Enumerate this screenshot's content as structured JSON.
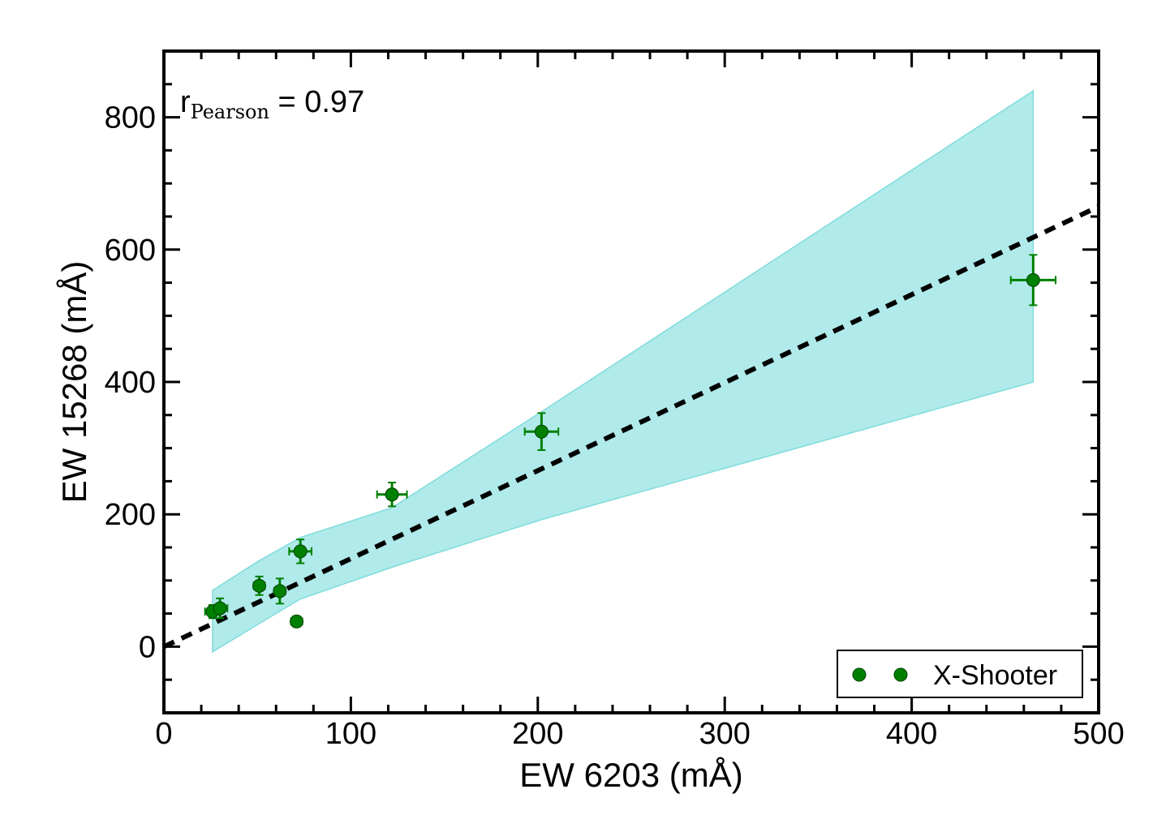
{
  "chart_data": {
    "type": "scatter",
    "title": "",
    "xlabel": "EW 6203 (mÅ)",
    "ylabel": "EW 15268 (mÅ)",
    "xlim": [
      0,
      500
    ],
    "ylim": [
      -100,
      900
    ],
    "x_ticks": [
      0,
      100,
      200,
      300,
      400,
      500
    ],
    "x_tick_labels": [
      "0",
      "100",
      "200",
      "300",
      "400",
      "500"
    ],
    "y_ticks": [
      0,
      200,
      400,
      600,
      800
    ],
    "y_tick_labels": [
      "0",
      "200",
      "400",
      "600",
      "800"
    ],
    "grid": false,
    "series": [
      {
        "name": "X-Shooter",
        "color": "#008000",
        "points": [
          {
            "x": 26,
            "y": 53,
            "xerr": 4,
            "yerr": 10
          },
          {
            "x": 30,
            "y": 58,
            "xerr": 4,
            "yerr": 15
          },
          {
            "x": 51,
            "y": 92,
            "xerr": 3,
            "yerr": 14
          },
          {
            "x": 62,
            "y": 84,
            "xerr": 3,
            "yerr": 19
          },
          {
            "x": 71,
            "y": 38,
            "xerr": 3,
            "yerr": 8
          },
          {
            "x": 73,
            "y": 144,
            "xerr": 6,
            "yerr": 18
          },
          {
            "x": 122,
            "y": 230,
            "xerr": 8,
            "yerr": 18
          },
          {
            "x": 202,
            "y": 325,
            "xerr": 9,
            "yerr": 28
          },
          {
            "x": 465,
            "y": 554,
            "xerr": 12,
            "yerr": 38
          }
        ]
      }
    ],
    "fit_line": {
      "slope": 1.33,
      "intercept": 0,
      "x_range": [
        0,
        500
      ],
      "style": "dashed",
      "color": "#000000"
    },
    "confidence_band": {
      "color": "#b0eaea",
      "edge_color": "#80dcdc",
      "upper": [
        [
          26,
          85
        ],
        [
          51,
          130
        ],
        [
          73,
          165
        ],
        [
          122,
          210
        ],
        [
          202,
          355
        ],
        [
          465,
          840
        ]
      ],
      "lower": [
        [
          26,
          -8
        ],
        [
          51,
          35
        ],
        [
          73,
          72
        ],
        [
          122,
          120
        ],
        [
          202,
          192
        ],
        [
          465,
          400
        ]
      ]
    },
    "annotation": {
      "main": "r",
      "subscript": "Pearson",
      "suffix": " = 0.97"
    },
    "legend": {
      "location": "bottom-right",
      "entries": [
        "X-Shooter"
      ]
    }
  }
}
